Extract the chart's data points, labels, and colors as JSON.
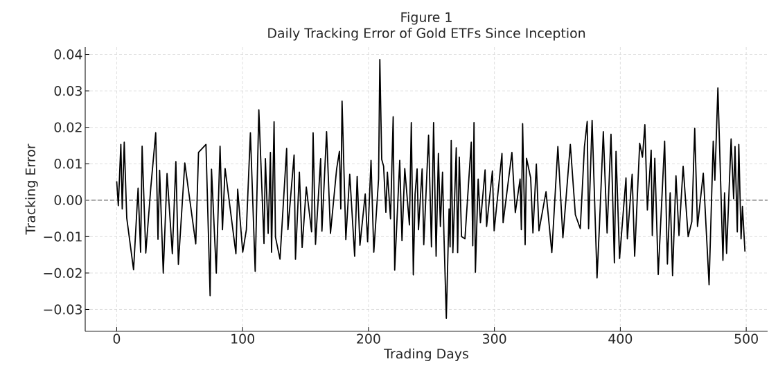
{
  "chart_data": {
    "type": "line",
    "title": "Figure 1",
    "subtitle": "Daily Tracking Error of Gold ETFs Since Inception",
    "xlabel": "Trading Days",
    "ylabel": "Tracking Error",
    "xlim": [
      -25,
      517
    ],
    "ylim": [
      -0.036,
      0.042
    ],
    "xticks": [
      0,
      100,
      200,
      300,
      400,
      500
    ],
    "yticks": [
      {
        "value": -0.03,
        "label": "−0.03"
      },
      {
        "value": -0.02,
        "label": "−0.02"
      },
      {
        "value": -0.01,
        "label": "−0.01"
      },
      {
        "value": 0,
        "label": "0.00"
      },
      {
        "value": 0.01,
        "label": "0.01"
      },
      {
        "value": 0.02,
        "label": "0.02"
      },
      {
        "value": 0.03,
        "label": "0.03"
      },
      {
        "value": 0.04,
        "label": "0.04"
      }
    ],
    "grid": true,
    "marker": "none",
    "line_style": "solid",
    "ref_lines": [
      {
        "axis": "y",
        "value": 0,
        "color": "#808080",
        "line_style": "dashed"
      }
    ],
    "series": [
      {
        "color": "#000000",
        "x": [
          0,
          1.3,
          3.3,
          4.4,
          6,
          8,
          13.4,
          17,
          19,
          20.2,
          23.1,
          27.1,
          31,
          32.8,
          34.1,
          37,
          40,
          44.2,
          47,
          49,
          54.1,
          62.8,
          65,
          70.9,
          74.2,
          75.3,
          79.1,
          82.1,
          84,
          86.1,
          94.7,
          96.1,
          100.1,
          103,
          106.2,
          110,
          112.9,
          117,
          118.1,
          120.3,
          122.1,
          123,
          125,
          126.1,
          129.7,
          135,
          136,
          140.9,
          142,
          145.1,
          147.3,
          150.6,
          154.8,
          156,
          157.9,
          162,
          163,
          166.7,
          169.8,
          174.7,
          176.9,
          178,
          179,
          182,
          185.1,
          189,
          191,
          193.2,
          197.4,
          199.3,
          202,
          204.2,
          208,
          209,
          210.5,
          212,
          213.8,
          215,
          217.5,
          219.6,
          220.8,
          224.8,
          226.6,
          228.8,
          232.5,
          234,
          235.6,
          237,
          238.6,
          239.7,
          242.6,
          243.9,
          247.7,
          250,
          251.7,
          253.7,
          255.5,
          257.1,
          258.8,
          259.9,
          261.8,
          264,
          264.8,
          265.7,
          267,
          269.7,
          270.8,
          272.1,
          273.9,
          276.6,
          281.6,
          282.8,
          283.8,
          284.9,
          287.1,
          288.9,
          292.6,
          293.8,
          298.4,
          299.8,
          306,
          306.9,
          313.9,
          316.6,
          320.4,
          321.4,
          322.4,
          324.4,
          325.5,
          328.8,
          330.6,
          333.3,
          335.4,
          341,
          345.6,
          350.4,
          354.4,
          360.3,
          364.3,
          368.2,
          371.5,
          373.7,
          374.8,
          377.6,
          381.5,
          383.4,
          386.5,
          389.5,
          392.6,
          395.3,
          396.6,
          399.4,
          404.5,
          405.6,
          409.4,
          411.4,
          415.4,
          417.6,
          419.5,
          421.5,
          424.5,
          425.4,
          427.4,
          430.1,
          435.2,
          437.4,
          439.6,
          441.5,
          444.2,
          446.6,
          449.9,
          453.9,
          456.8,
          459.1,
          461.3,
          465.9,
          470.5,
          473.8,
          475.1,
          477.5,
          481.5,
          482.8,
          484.4,
          488,
          490,
          491.1,
          492.9,
          494.1,
          495.9,
          497,
          499
        ],
        "values": [
          0.0052,
          -0.0015,
          0.0153,
          -0.0024,
          0.0159,
          -0.0049,
          -0.0191,
          0.0033,
          -0.0143,
          0.0148,
          -0.0145,
          0.0035,
          0.0185,
          -0.0107,
          0.0082,
          -0.02,
          0.0073,
          -0.0147,
          0.0106,
          -0.0176,
          0.0102,
          -0.012,
          0.0131,
          0.0153,
          -0.0262,
          0.0085,
          -0.02,
          0.0148,
          -0.0081,
          0.0087,
          -0.0147,
          0.003,
          -0.0143,
          -0.0081,
          0.0185,
          -0.0195,
          0.0248,
          -0.0119,
          0.0114,
          -0.0091,
          0.0131,
          -0.0143,
          0.0215,
          -0.0101,
          -0.0162,
          0.0142,
          -0.0081,
          0.0124,
          -0.0162,
          0.0077,
          -0.013,
          0.0036,
          -0.0087,
          0.0185,
          -0.0121,
          0.0114,
          -0.0085,
          0.0188,
          -0.0091,
          0.0086,
          0.0134,
          -0.0024,
          0.0272,
          -0.0108,
          0.0071,
          -0.0154,
          0.0065,
          -0.0124,
          0.0017,
          -0.0114,
          0.0109,
          -0.0143,
          0.0058,
          0.0386,
          0.0112,
          0.0093,
          -0.0033,
          0.0077,
          -0.0051,
          0.0229,
          -0.0192,
          0.0109,
          -0.0111,
          0.0087,
          -0.0068,
          0.0213,
          -0.0205,
          0.0017,
          0.0086,
          -0.0081,
          0.0086,
          -0.0122,
          0.0178,
          -0.0128,
          0.0213,
          -0.0154,
          0.0128,
          -0.0072,
          0.0077,
          -0.0093,
          -0.0324,
          -0.0024,
          -0.0128,
          0.0164,
          -0.0144,
          0.0144,
          -0.0144,
          0.0118,
          -0.01,
          -0.0106,
          0.0159,
          -0.0125,
          0.0213,
          -0.0198,
          0.0058,
          -0.0062,
          0.0083,
          -0.0072,
          0.008,
          -0.0084,
          0.0128,
          -0.0062,
          0.0131,
          -0.0034,
          0.0058,
          -0.0081,
          0.021,
          -0.0122,
          0.0115,
          0.0061,
          -0.009,
          0.0099,
          -0.0084,
          0.0023,
          -0.0144,
          0.0147,
          -0.0103,
          0.0153,
          -0.004,
          -0.0078,
          0.0147,
          0.0216,
          -0.0078,
          0.0219,
          -0.0213,
          -0.0072,
          0.0188,
          -0.009,
          0.0181,
          -0.0172,
          0.0134,
          -0.016,
          0.0061,
          -0.0106,
          0.0071,
          -0.0154,
          0.0156,
          0.0118,
          0.0207,
          -0.0027,
          0.0137,
          -0.0097,
          0.0115,
          -0.0204,
          0.0162,
          -0.0175,
          0.002,
          -0.0207,
          0.0067,
          -0.0097,
          0.0093,
          -0.01,
          -0.0059,
          0.0197,
          -0.0072,
          0.0074,
          -0.0232,
          0.0162,
          0.0055,
          0.0308,
          -0.0165,
          0.002,
          -0.0146,
          0.0168,
          0.0004,
          0.0147,
          -0.0087,
          0.0153,
          -0.0106,
          -0.0017,
          -0.0141
        ]
      }
    ]
  }
}
